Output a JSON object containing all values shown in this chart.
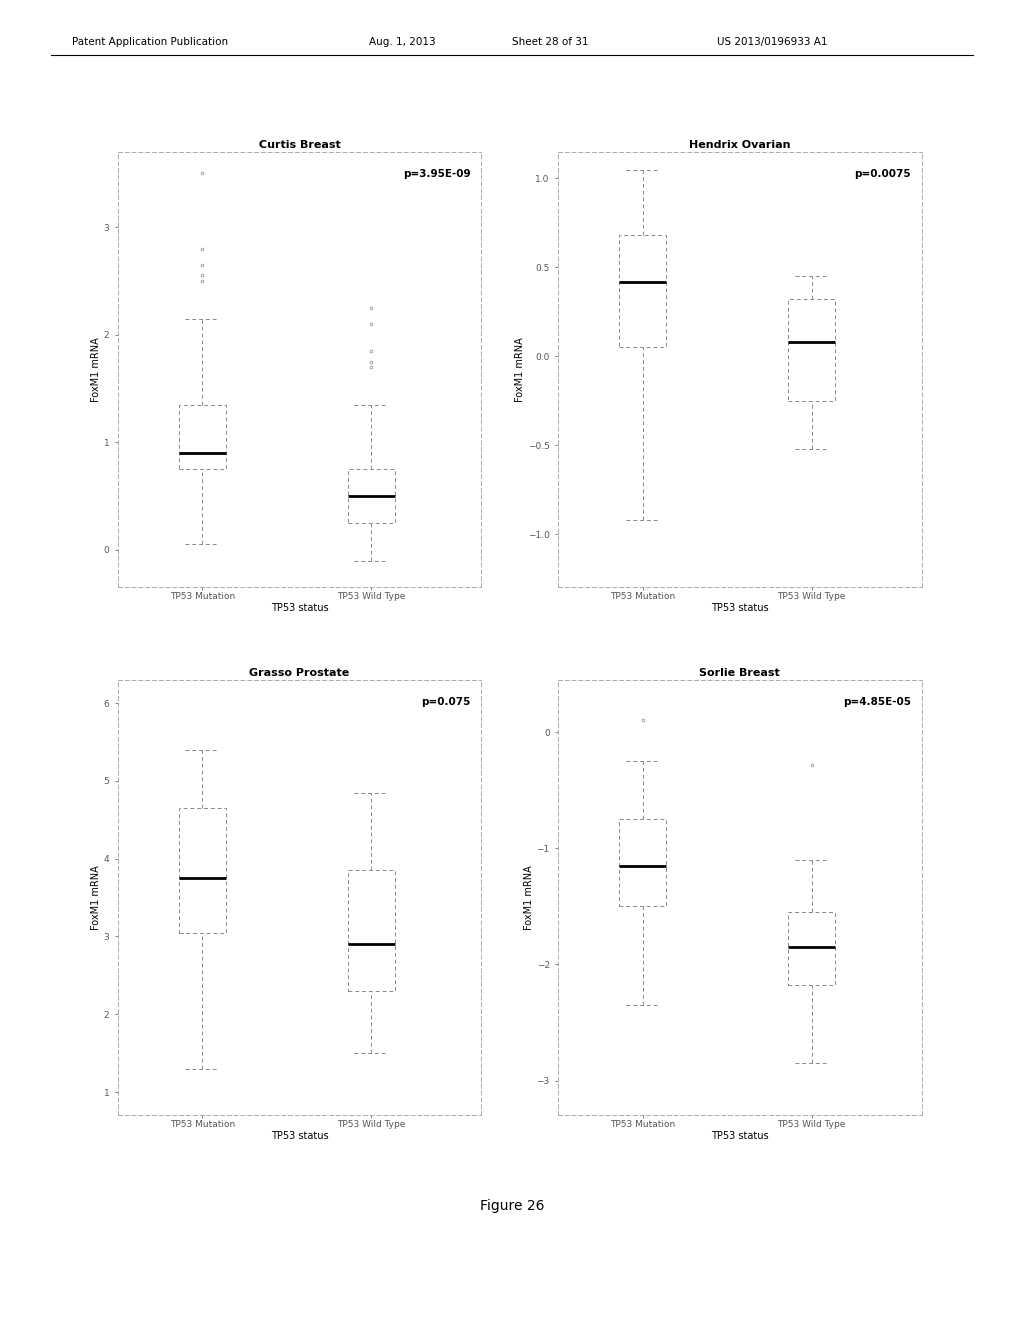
{
  "plots": [
    {
      "title": "Curtis Breast",
      "pvalue": "p=3.95E-09",
      "xlabel": "TP53 status",
      "ylabel": "FoxM1 mRNA",
      "xtick_labels": [
        "TP53 Mutation",
        "TP53 Wild Type"
      ],
      "ylim": [
        -0.35,
        3.7
      ],
      "yticks": [
        0,
        1,
        2,
        3
      ],
      "boxes": [
        {
          "q1": 0.75,
          "median": 0.9,
          "q3": 1.35,
          "whisker_low": 0.05,
          "whisker_high": 2.15,
          "outliers": [
            3.5,
            2.8,
            2.65,
            2.55,
            2.5
          ]
        },
        {
          "q1": 0.25,
          "median": 0.5,
          "q3": 0.75,
          "whisker_low": -0.1,
          "whisker_high": 1.35,
          "outliers": [
            2.1,
            2.25,
            1.85,
            1.75,
            1.7
          ]
        }
      ]
    },
    {
      "title": "Hendrix Ovarian",
      "pvalue": "p=0.0075",
      "xlabel": "TP53 status",
      "ylabel": "FoxM1 mRNA",
      "xtick_labels": [
        "TP53 Mutation",
        "TP53 Wild Type"
      ],
      "ylim": [
        -1.3,
        1.15
      ],
      "yticks": [
        -1.0,
        -0.5,
        0.0,
        0.5,
        1.0
      ],
      "boxes": [
        {
          "q1": 0.05,
          "median": 0.42,
          "q3": 0.68,
          "whisker_low": -0.92,
          "whisker_high": 1.05,
          "outliers": []
        },
        {
          "q1": -0.25,
          "median": 0.08,
          "q3": 0.32,
          "whisker_low": -0.52,
          "whisker_high": 0.45,
          "outliers": []
        }
      ]
    },
    {
      "title": "Grasso Prostate",
      "pvalue": "p=0.075",
      "xlabel": "TP53 status",
      "ylabel": "FoxM1 mRNA",
      "xtick_labels": [
        "TP53 Mutation",
        "TP53 Wild Type"
      ],
      "ylim": [
        0.7,
        6.3
      ],
      "yticks": [
        1,
        2,
        3,
        4,
        5,
        6
      ],
      "boxes": [
        {
          "q1": 3.05,
          "median": 3.75,
          "q3": 4.65,
          "whisker_low": 1.3,
          "whisker_high": 5.4,
          "outliers": []
        },
        {
          "q1": 2.3,
          "median": 2.9,
          "q3": 3.85,
          "whisker_low": 1.5,
          "whisker_high": 4.85,
          "outliers": []
        }
      ]
    },
    {
      "title": "Sorlie Breast",
      "pvalue": "p=4.85E-05",
      "xlabel": "TP53 status",
      "ylabel": "FoxM1 mRNA",
      "xtick_labels": [
        "TP53 Mutation",
        "TP53 Wild Type"
      ],
      "ylim": [
        -3.3,
        0.45
      ],
      "yticks": [
        -3,
        -2,
        -1,
        0
      ],
      "boxes": [
        {
          "q1": -1.5,
          "median": -1.15,
          "q3": -0.75,
          "whisker_low": -2.35,
          "whisker_high": -0.25,
          "outliers": [
            0.1
          ]
        },
        {
          "q1": -2.18,
          "median": -1.85,
          "q3": -1.55,
          "whisker_low": -2.85,
          "whisker_high": -1.1,
          "outliers": [
            -0.28
          ]
        }
      ]
    }
  ],
  "background_color": "#ffffff",
  "box_facecolor": "#ffffff",
  "box_edgecolor": "#888888",
  "median_color": "#000000",
  "whisker_color": "#888888",
  "outlier_color": "#888888",
  "font_family": "DejaVu Sans",
  "title_fontsize": 8,
  "tick_fontsize": 6.5,
  "label_fontsize": 7,
  "pvalue_fontsize": 7.5,
  "header_text": "Patent Application Publication",
  "header_date": "Aug. 1, 2013",
  "header_sheet": "Sheet 28 of 31",
  "header_patent": "US 2013/0196933 A1",
  "figure_label": "Figure 26"
}
